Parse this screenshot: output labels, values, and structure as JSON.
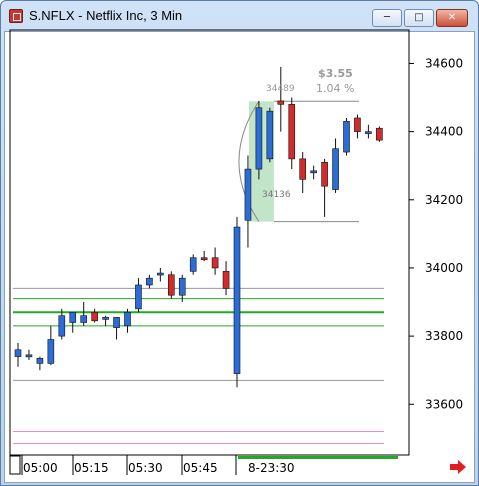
{
  "window": {
    "title": "S.NFLX - Netflix Inc, 3 Min",
    "minimize_icon": "minimize-icon",
    "maximize_icon": "maximize-icon",
    "close_icon": "close-icon"
  },
  "chart": {
    "price_change": "$3.55",
    "percent_change": "1.04 %",
    "range_low_label": "34136",
    "range_high_label": "34489",
    "scroll_arrow_icon": "right-arrow-icon",
    "colors": {
      "up": "#2b6cd6",
      "down": "#d22b2b",
      "accent_green": "#22aa22",
      "pink": "#f08ac0",
      "shade": "#a8d8b0"
    }
  },
  "chart_data": {
    "type": "candlestick",
    "title": "S.NFLX - Netflix Inc, 3 Min",
    "y_ticks": [
      33600,
      33800,
      34000,
      34200,
      34400,
      34600
    ],
    "y_tick_labels": [
      "33600",
      "33800",
      "34000",
      "34200",
      "34400",
      "34600"
    ],
    "x_tick_labels": [
      "05:00",
      "05:15",
      "05:30",
      "05:45",
      "8-23:30"
    ],
    "ylim": [
      33460,
      34660
    ],
    "candles": [
      {
        "o": 33740,
        "h": 33780,
        "l": 33710,
        "c": 33760
      },
      {
        "o": 33740,
        "h": 33760,
        "l": 33730,
        "c": 33745
      },
      {
        "o": 33720,
        "h": 33740,
        "l": 33700,
        "c": 33735
      },
      {
        "o": 33720,
        "h": 33830,
        "l": 33715,
        "c": 33790
      },
      {
        "o": 33800,
        "h": 33880,
        "l": 33790,
        "c": 33860
      },
      {
        "o": 33840,
        "h": 33870,
        "l": 33810,
        "c": 33870
      },
      {
        "o": 33840,
        "h": 33900,
        "l": 33830,
        "c": 33860
      },
      {
        "o": 33870,
        "h": 33880,
        "l": 33840,
        "c": 33845
      },
      {
        "o": 33850,
        "h": 33860,
        "l": 33830,
        "c": 33855
      },
      {
        "o": 33825,
        "h": 33855,
        "l": 33790,
        "c": 33855
      },
      {
        "o": 33830,
        "h": 33880,
        "l": 33810,
        "c": 33870
      },
      {
        "o": 33880,
        "h": 33970,
        "l": 33870,
        "c": 33950
      },
      {
        "o": 33950,
        "h": 33980,
        "l": 33940,
        "c": 33970
      },
      {
        "o": 33985,
        "h": 34000,
        "l": 33960,
        "c": 33985
      },
      {
        "o": 33980,
        "h": 33990,
        "l": 33910,
        "c": 33920
      },
      {
        "o": 33920,
        "h": 33980,
        "l": 33900,
        "c": 33970
      },
      {
        "o": 33990,
        "h": 34040,
        "l": 33980,
        "c": 34030
      },
      {
        "o": 34030,
        "h": 34050,
        "l": 34020,
        "c": 34025
      },
      {
        "o": 34030,
        "h": 34060,
        "l": 33980,
        "c": 34000
      },
      {
        "o": 33990,
        "h": 34020,
        "l": 33920,
        "c": 33940
      },
      {
        "o": 33690,
        "h": 34150,
        "l": 33650,
        "c": 34120
      },
      {
        "o": 34140,
        "h": 34330,
        "l": 34060,
        "c": 34290
      },
      {
        "o": 34290,
        "h": 34490,
        "l": 34260,
        "c": 34470
      },
      {
        "o": 34320,
        "h": 34470,
        "l": 34310,
        "c": 34460
      },
      {
        "o": 34490,
        "h": 34590,
        "l": 34400,
        "c": 34480
      },
      {
        "o": 34480,
        "h": 34500,
        "l": 34290,
        "c": 34320
      },
      {
        "o": 34320,
        "h": 34340,
        "l": 34220,
        "c": 34260
      },
      {
        "o": 34280,
        "h": 34300,
        "l": 34260,
        "c": 34285
      },
      {
        "o": 34310,
        "h": 34320,
        "l": 34150,
        "c": 34240
      },
      {
        "o": 34230,
        "h": 34380,
        "l": 34220,
        "c": 34350
      },
      {
        "o": 34340,
        "h": 34440,
        "l": 34330,
        "c": 34430
      },
      {
        "o": 34440,
        "h": 34450,
        "l": 34380,
        "c": 34400
      },
      {
        "o": 34400,
        "h": 34420,
        "l": 34380,
        "c": 34400
      },
      {
        "o": 34410,
        "h": 34415,
        "l": 34370,
        "c": 34375
      }
    ],
    "horizontal_lines": [
      {
        "y": 33940,
        "color": "#999999"
      },
      {
        "y": 33910,
        "color": "#22aa22"
      },
      {
        "y": 33870,
        "color": "#22aa22",
        "width": 2
      },
      {
        "y": 33830,
        "color": "#22aa22"
      },
      {
        "y": 33670,
        "color": "#999999"
      },
      {
        "y": 33520,
        "color": "#f08ac0"
      },
      {
        "y": 33485,
        "color": "#f08ac0"
      }
    ],
    "range_box": {
      "start_index": 21,
      "end_index": 22,
      "low": 34136,
      "high": 34489
    }
  }
}
